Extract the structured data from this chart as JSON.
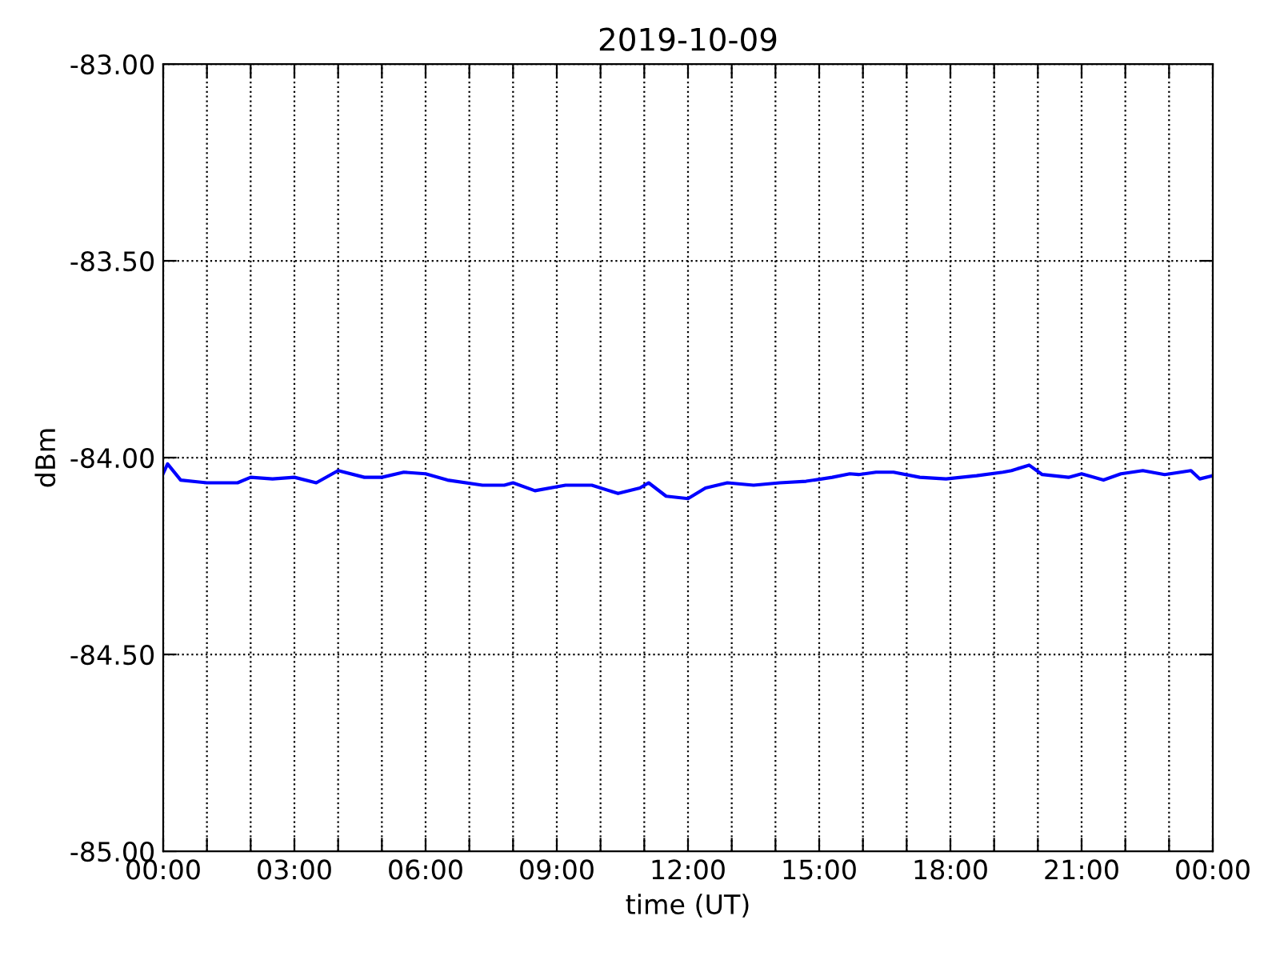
{
  "chart_data": {
    "type": "line",
    "title": "2019-10-09",
    "xlabel": "time (UT)",
    "ylabel": "dBm",
    "x": [
      0,
      0.1,
      0.4,
      1.0,
      1.7,
      2.0,
      2.5,
      3.0,
      3.5,
      4.0,
      4.6,
      5.0,
      5.5,
      6.0,
      6.5,
      7.3,
      7.8,
      8.0,
      8.5,
      9.2,
      9.8,
      10.4,
      10.9,
      11.1,
      11.5,
      12.0,
      12.4,
      12.9,
      13.5,
      14.1,
      14.7,
      15.3,
      15.7,
      15.9,
      16.3,
      16.7,
      17.3,
      17.9,
      18.6,
      19.2,
      19.4,
      19.8,
      20.1,
      20.7,
      21.0,
      21.5,
      21.9,
      22.4,
      22.9,
      23.5,
      23.7,
      24.0
    ],
    "series": [
      {
        "color": "#0000ff",
        "values": [
          -84.04,
          -84.016,
          -84.057,
          -84.064,
          -84.064,
          -84.05,
          -84.054,
          -84.05,
          -84.064,
          -84.033,
          -84.05,
          -84.05,
          -84.037,
          -84.041,
          -84.057,
          -84.07,
          -84.07,
          -84.064,
          -84.084,
          -84.07,
          -84.07,
          -84.091,
          -84.077,
          -84.064,
          -84.098,
          -84.104,
          -84.077,
          -84.064,
          -84.07,
          -84.064,
          -84.06,
          -84.05,
          -84.041,
          -84.043,
          -84.037,
          -84.037,
          -84.05,
          -84.054,
          -84.046,
          -84.037,
          -84.033,
          -84.019,
          -84.043,
          -84.05,
          -84.041,
          -84.057,
          -84.041,
          -84.033,
          -84.043,
          -84.033,
          -84.054,
          -84.046
        ]
      }
    ],
    "xlim": [
      0,
      24
    ],
    "xticks": [
      {
        "value": 0,
        "label": "00:00"
      },
      {
        "value": 1,
        "label": null
      },
      {
        "value": 2,
        "label": null
      },
      {
        "value": 3,
        "label": "03:00"
      },
      {
        "value": 4,
        "label": null
      },
      {
        "value": 5,
        "label": null
      },
      {
        "value": 6,
        "label": "06:00"
      },
      {
        "value": 7,
        "label": null
      },
      {
        "value": 8,
        "label": null
      },
      {
        "value": 9,
        "label": "09:00"
      },
      {
        "value": 10,
        "label": null
      },
      {
        "value": 11,
        "label": null
      },
      {
        "value": 12,
        "label": "12:00"
      },
      {
        "value": 13,
        "label": null
      },
      {
        "value": 14,
        "label": null
      },
      {
        "value": 15,
        "label": "15:00"
      },
      {
        "value": 16,
        "label": null
      },
      {
        "value": 17,
        "label": null
      },
      {
        "value": 18,
        "label": "18:00"
      },
      {
        "value": 19,
        "label": null
      },
      {
        "value": 20,
        "label": null
      },
      {
        "value": 21,
        "label": "21:00"
      },
      {
        "value": 22,
        "label": null
      },
      {
        "value": 23,
        "label": null
      },
      {
        "value": 24,
        "label": "00:00"
      }
    ],
    "ylim": [
      -85,
      -83
    ],
    "yticks": [
      {
        "value": -85,
        "label": "-85.00"
      },
      {
        "value": -84.5,
        "label": "-84.50"
      },
      {
        "value": -84,
        "label": "-84.00"
      },
      {
        "value": -83.5,
        "label": "-83.50"
      },
      {
        "value": -83,
        "label": "-83.00"
      }
    ],
    "grid": true,
    "line_style": "solid"
  }
}
